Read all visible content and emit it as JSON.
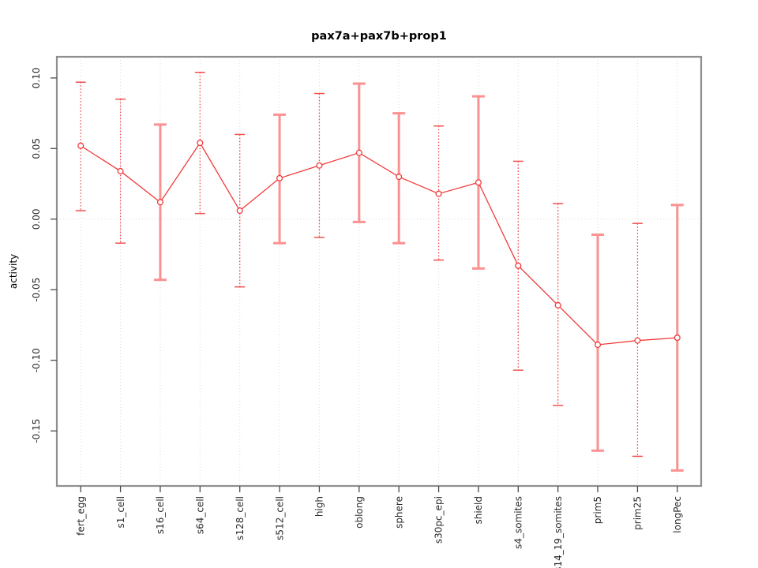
{
  "chart_data": {
    "type": "line",
    "title": "pax7a+pax7b+prop1",
    "xlabel": "",
    "ylabel": "activity",
    "legend": "none",
    "grid": "vertical-dotted-at-categories",
    "reference_line": 0,
    "xlim": [
      0.4,
      16.6
    ],
    "ylim": [
      -0.189,
      0.115
    ],
    "categories": [
      "fert_egg",
      "s1_cell",
      "s16_cell",
      "s64_cell",
      "s128_cell",
      "s512_cell",
      "high",
      "oblong",
      "sphere",
      "s30pc_epi",
      "shield",
      "s4_somites",
      "s14_19_somites",
      "prim5",
      "prim25",
      "longPec"
    ],
    "series": [
      {
        "name": "activity",
        "values": [
          0.052,
          0.034,
          0.012,
          0.054,
          0.006,
          0.029,
          0.038,
          0.047,
          0.03,
          0.018,
          0.026,
          -0.033,
          -0.061,
          -0.089,
          -0.086,
          -0.084
        ],
        "upper": [
          0.097,
          0.085,
          0.067,
          0.104,
          0.06,
          0.074,
          0.089,
          0.096,
          0.075,
          0.066,
          0.087,
          0.041,
          0.011,
          -0.011,
          -0.003,
          0.01
        ],
        "lower": [
          0.006,
          -0.017,
          -0.043,
          0.004,
          -0.048,
          -0.017,
          -0.013,
          -0.002,
          -0.017,
          -0.029,
          -0.035,
          -0.107,
          -0.132,
          -0.164,
          -0.168,
          -0.178
        ]
      }
    ],
    "error_bar_styles": [
      "dotted",
      "dotted",
      "solid",
      "dotted",
      "dotted",
      "solid",
      "dotted",
      "solid",
      "solid",
      "dotted",
      "solid",
      "dotted",
      "dotted",
      "solid",
      "dotted",
      "solid"
    ],
    "y_ticks": [
      {
        "label": "0.10",
        "value": 0.1
      },
      {
        "label": "0.05",
        "value": 0.05
      },
      {
        "label": "0.00",
        "value": 0.0
      },
      {
        "label": "-0.05",
        "value": -0.05
      },
      {
        "label": "-0.10",
        "value": -0.1
      },
      {
        "label": "-0.15",
        "value": -0.15
      }
    ],
    "colors": {
      "line": "#f23b3b",
      "point": "#f23b3b",
      "error_bar_dotted": "#f25050",
      "error_bar_solid": "#fb9191",
      "grid": "#dcdcdc",
      "frame": "#8f8f8f",
      "axis": "#4a4a4a",
      "text": "#2b2b2b"
    }
  }
}
